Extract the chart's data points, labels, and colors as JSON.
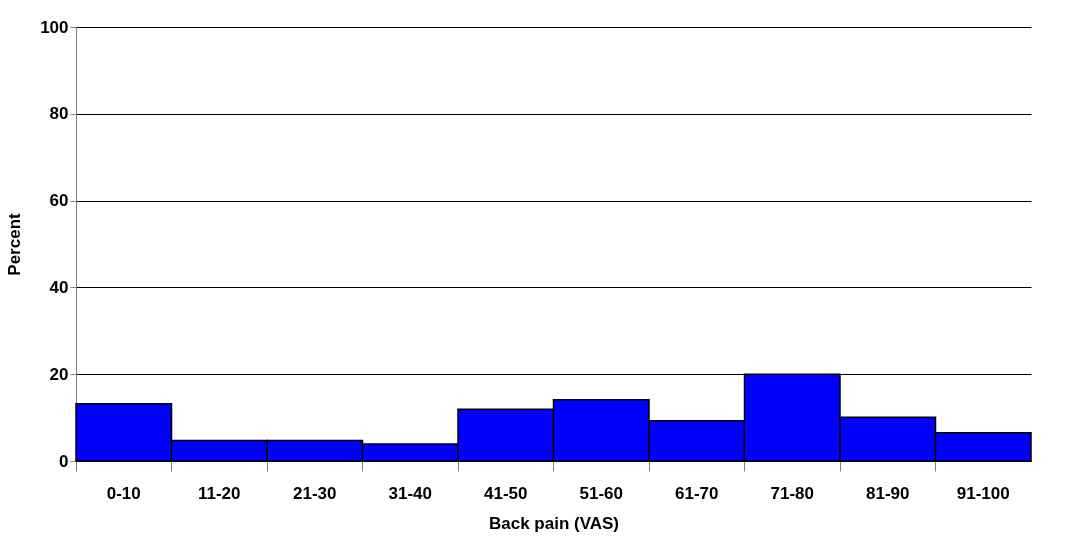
{
  "chart_data": {
    "type": "bar",
    "xlabel": "Back pain (VAS)",
    "ylabel": "Percent",
    "categories": [
      "0-10",
      "11-20",
      "21-30",
      "31-40",
      "41-50",
      "51-60",
      "61-70",
      "71-80",
      "81-90",
      "91-100"
    ],
    "values": [
      13.2,
      4.7,
      4.7,
      3.9,
      11.9,
      14.1,
      9.3,
      20,
      10.1,
      6.5
    ],
    "color": "#0000ff",
    "ylim": [
      0,
      100
    ],
    "yticks": [
      0,
      20,
      40,
      60,
      80,
      100
    ],
    "grid": "y"
  }
}
